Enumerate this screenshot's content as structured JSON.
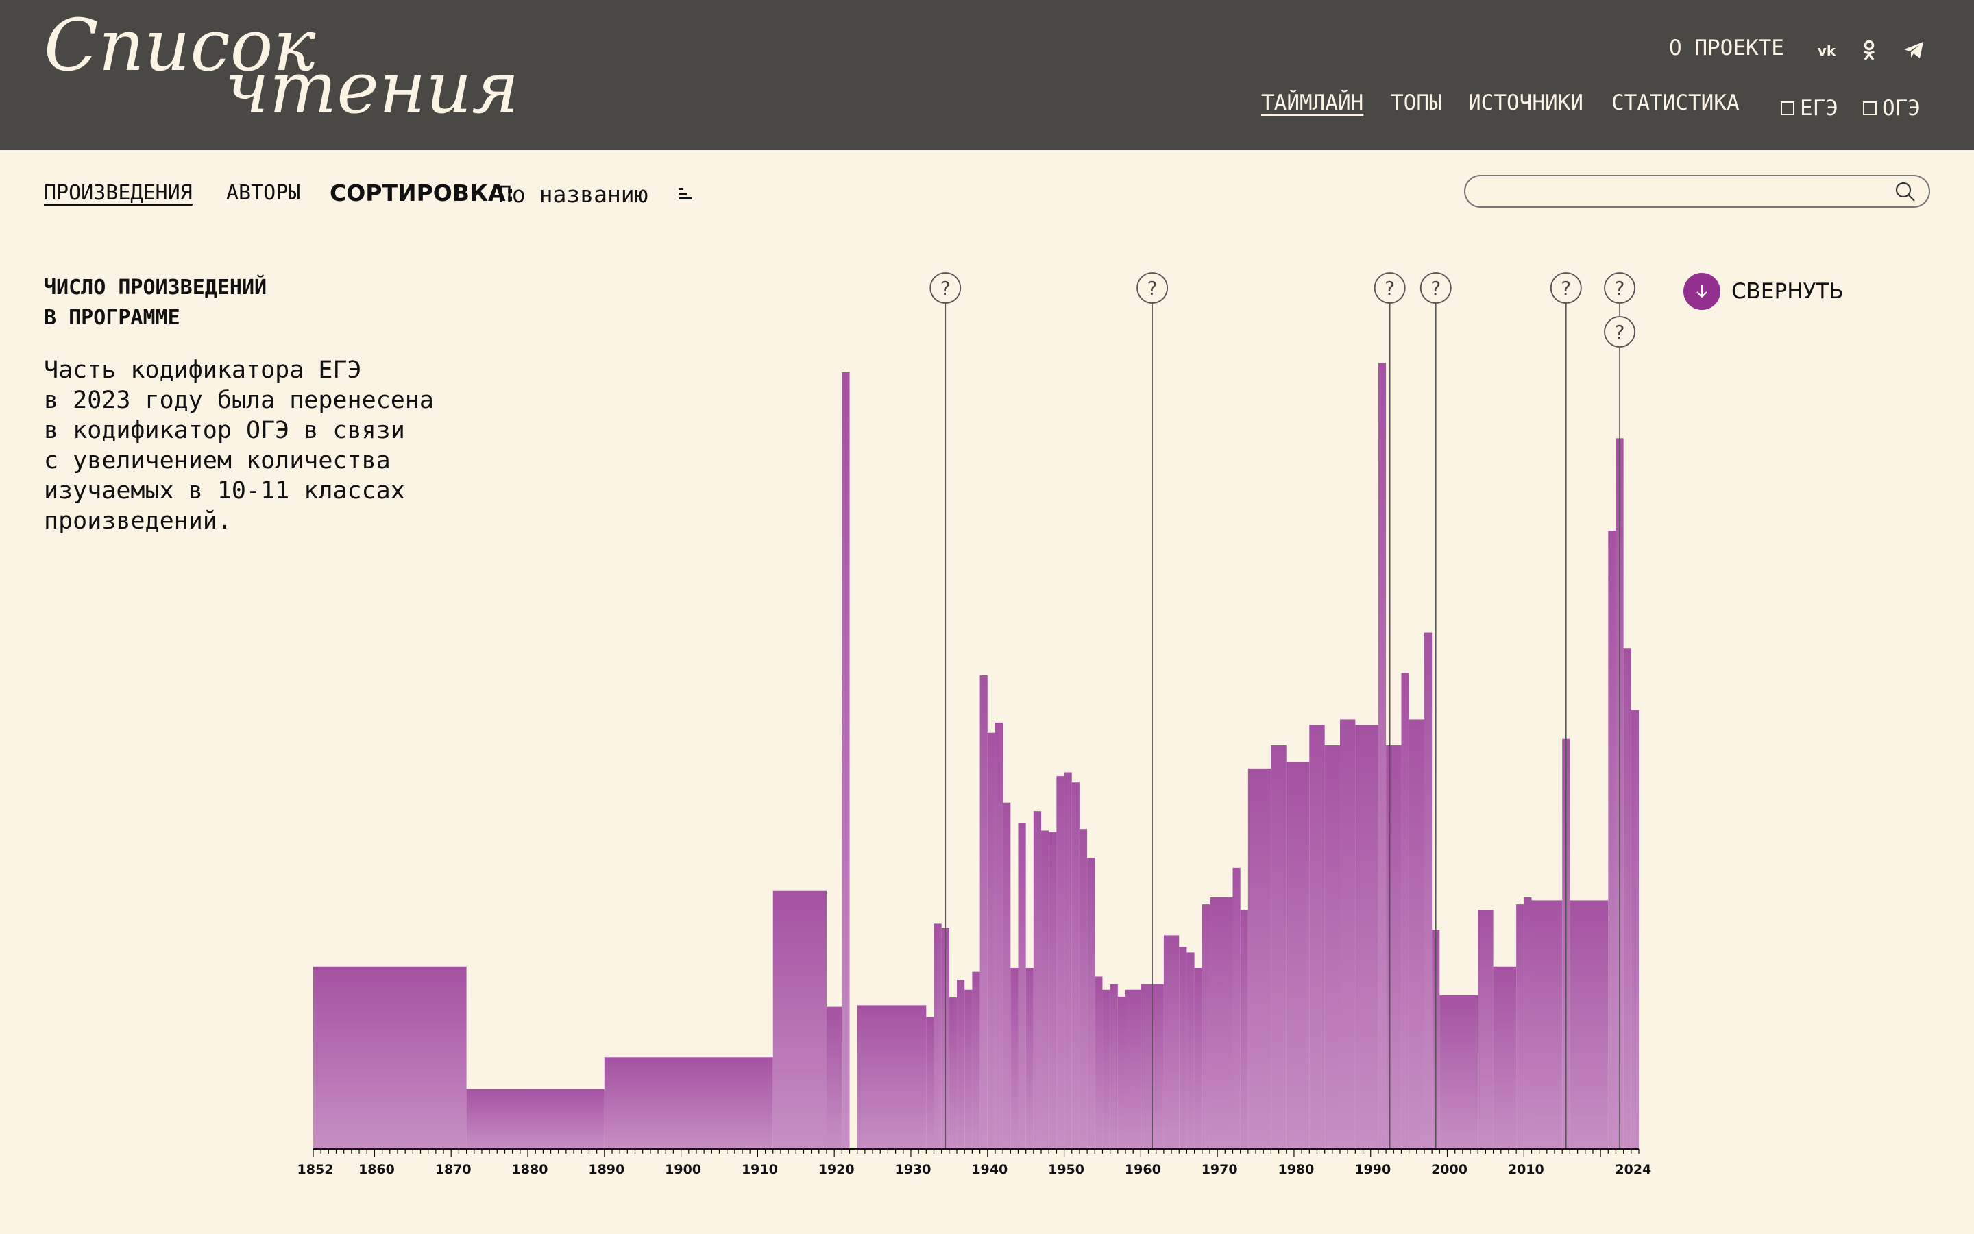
{
  "header": {
    "logo_line1": "Список",
    "logo_line2": "чтения",
    "about": "О ПРОЕКТЕ",
    "nav": [
      {
        "label": "ТАЙМЛАЙН",
        "active": true
      },
      {
        "label": "ТОПЫ",
        "active": false
      },
      {
        "label": "ИСТОЧНИКИ",
        "active": false
      },
      {
        "label": "СТАТИСТИКА",
        "active": false
      }
    ],
    "filters": [
      {
        "label": "ЕГЭ",
        "checked": false
      },
      {
        "label": "ОГЭ",
        "checked": false
      }
    ],
    "social_icons": [
      "vk-icon",
      "odnoklassniki-icon",
      "telegram-icon"
    ]
  },
  "subnav": {
    "works": "ПРОИЗВЕДЕНИЯ",
    "authors": "АВТОРЫ",
    "sort_label": "СОРТИРОВКА:",
    "sort_value": "По названию"
  },
  "search": {
    "placeholder": "",
    "value": ""
  },
  "panel": {
    "title": "ЧИСЛО ПРОИЗВЕДЕНИЙ\nВ ПРОГРАММЕ",
    "note": "Часть кодификатора ЕГЭ\nв 2023 году была перенесена\nв кодификатор ОГЭ в связи\nс увеличением количества\nизучаемых в 10-11 классах\nпроизведений.",
    "collapse_label": "СВЕРНУТЬ"
  },
  "colors": {
    "header_bg": "#4a4845",
    "page_bg": "#fbf3e4",
    "bar": "#b872b4",
    "bar_top": "#a452a2",
    "accent": "#93308f"
  },
  "chart_data": {
    "type": "bar",
    "x_range": [
      1852,
      2024
    ],
    "tick_labels": [
      1852,
      1860,
      1870,
      1880,
      1890,
      1900,
      1910,
      1920,
      1930,
      1940,
      1950,
      1960,
      1970,
      1980,
      1990,
      2000,
      2010,
      2024
    ],
    "ylim": [
      0,
      100
    ],
    "series": [
      {
        "segments": [
          [
            1852,
            1872,
            23.5
          ],
          [
            1872,
            1890,
            7.7
          ],
          [
            1890,
            1912,
            11.8
          ],
          [
            1912,
            1919,
            33.3
          ],
          [
            1919,
            1921,
            18.3
          ],
          [
            1921,
            1922,
            100
          ],
          [
            1922,
            1923,
            0
          ],
          [
            1923,
            1932,
            18.5
          ],
          [
            1932,
            1933,
            17
          ],
          [
            1933,
            1934,
            29
          ],
          [
            1934,
            1935,
            28.5
          ],
          [
            1935,
            1936,
            19.5
          ],
          [
            1936,
            1937,
            21.8
          ],
          [
            1937,
            1938,
            20.5
          ],
          [
            1938,
            1939,
            22.8
          ],
          [
            1939,
            1940,
            61
          ],
          [
            1940,
            1941,
            53.6
          ],
          [
            1941,
            1942,
            54.9
          ],
          [
            1942,
            1943,
            44.6
          ],
          [
            1943,
            1944,
            23.3
          ],
          [
            1944,
            1945,
            42
          ],
          [
            1945,
            1946,
            23.3
          ],
          [
            1946,
            1947,
            43.5
          ],
          [
            1947,
            1948,
            41
          ],
          [
            1948,
            1949,
            40.8
          ],
          [
            1949,
            1950,
            48
          ],
          [
            1950,
            1951,
            48.5
          ],
          [
            1951,
            1952,
            47.2
          ],
          [
            1952,
            1953,
            41.2
          ],
          [
            1953,
            1954,
            37.5
          ],
          [
            1954,
            1955,
            22.2
          ],
          [
            1955,
            1956,
            20.5
          ],
          [
            1956,
            1957,
            21.2
          ],
          [
            1957,
            1958,
            19.6
          ],
          [
            1958,
            1960,
            20.5
          ],
          [
            1960,
            1963,
            21.2
          ],
          [
            1963,
            1965,
            27.5
          ],
          [
            1965,
            1966,
            26
          ],
          [
            1966,
            1967,
            25.3
          ],
          [
            1967,
            1968,
            23.3
          ],
          [
            1968,
            1969,
            31.5
          ],
          [
            1969,
            1972,
            32.4
          ],
          [
            1972,
            1973,
            36.2
          ],
          [
            1973,
            1974,
            30.8
          ],
          [
            1974,
            1977,
            49
          ],
          [
            1977,
            1979,
            52
          ],
          [
            1979,
            1982,
            49.8
          ],
          [
            1982,
            1984,
            54.6
          ],
          [
            1984,
            1986,
            52
          ],
          [
            1986,
            1988,
            55.3
          ],
          [
            1988,
            1991,
            54.6
          ],
          [
            1991,
            1992,
            101.2
          ],
          [
            1992,
            1994,
            52
          ],
          [
            1994,
            1995,
            61.3
          ],
          [
            1995,
            1997,
            55.3
          ],
          [
            1997,
            1998,
            66.5
          ],
          [
            1998,
            1999,
            28.2
          ],
          [
            1999,
            2004,
            19.8
          ],
          [
            2004,
            2006,
            30.8
          ],
          [
            2006,
            2009,
            23.5
          ],
          [
            2009,
            2010,
            31.5
          ],
          [
            2010,
            2011,
            32.4
          ],
          [
            2011,
            2015,
            32
          ],
          [
            2015,
            2016,
            52.8
          ],
          [
            2016,
            2021,
            32
          ],
          [
            2021,
            2022,
            79.6
          ],
          [
            2022,
            2023,
            91.5
          ],
          [
            2023,
            2024,
            64.5
          ],
          [
            2024,
            2025,
            56.5
          ]
        ]
      }
    ],
    "markers": [
      {
        "year": 1934.5,
        "label": "?"
      },
      {
        "year": 1961.5,
        "label": "?"
      },
      {
        "year": 1992.5,
        "label": "?"
      },
      {
        "year": 1998.5,
        "label": "?"
      },
      {
        "year": 2015.5,
        "label": "?"
      },
      {
        "year": 2022.5,
        "label": "?"
      },
      {
        "year": 2022.5,
        "label": "?"
      }
    ],
    "grid": false,
    "legend": "none"
  }
}
